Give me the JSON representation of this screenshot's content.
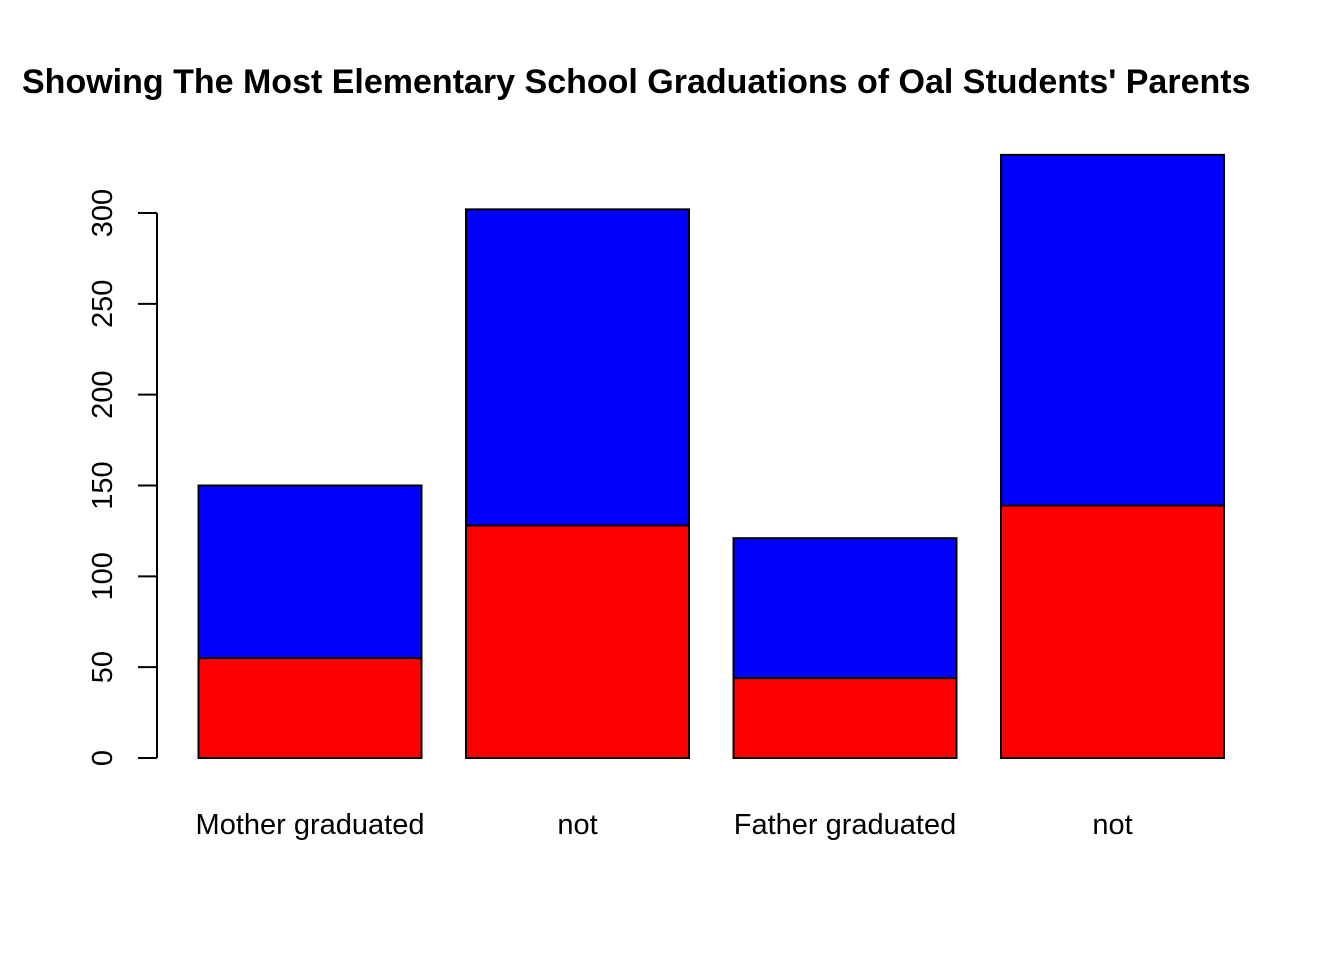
{
  "chart_data": {
    "type": "bar",
    "stacked": true,
    "title": "Showing The Most Elementary School Graduations of Oal Students' Parents",
    "xlabel": "",
    "ylabel": "",
    "categories": [
      "Mother graduated",
      "not",
      "Father graduated",
      "not"
    ],
    "series": [
      {
        "values": [
          55,
          128,
          44,
          139
        ],
        "color": "#ff0000"
      },
      {
        "values": [
          95,
          174,
          77,
          193
        ],
        "color": "#0000ff"
      }
    ],
    "yticks": [
      0,
      50,
      100,
      150,
      200,
      250,
      300
    ],
    "ytick_labels": [
      "0",
      "50",
      "100",
      "150",
      "200",
      "250",
      "300"
    ],
    "ylim": [
      0,
      332
    ],
    "grid": false,
    "legend": "none"
  }
}
